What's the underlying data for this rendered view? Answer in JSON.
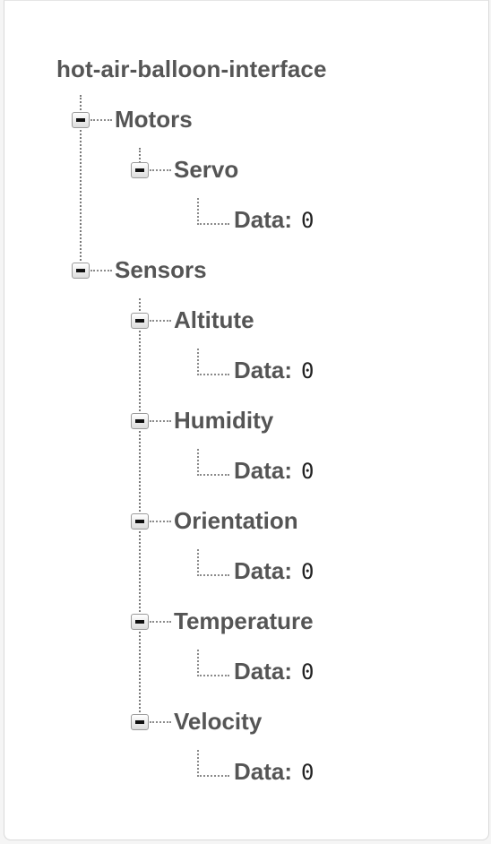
{
  "tree": {
    "root": "hot-air-balloon-interface",
    "motors": {
      "label": "Motors",
      "servo": {
        "label": "Servo",
        "key": "Data:",
        "value": "0"
      }
    },
    "sensors": {
      "label": "Sensors",
      "altitute": {
        "label": "Altitute",
        "key": "Data:",
        "value": "0"
      },
      "humidity": {
        "label": "Humidity",
        "key": "Data:",
        "value": "0"
      },
      "orientation": {
        "label": "Orientation",
        "key": "Data:",
        "value": "0"
      },
      "temperature": {
        "label": "Temperature",
        "key": "Data:",
        "value": "0"
      },
      "velocity": {
        "label": "Velocity",
        "key": "Data:",
        "value": "0"
      }
    }
  }
}
